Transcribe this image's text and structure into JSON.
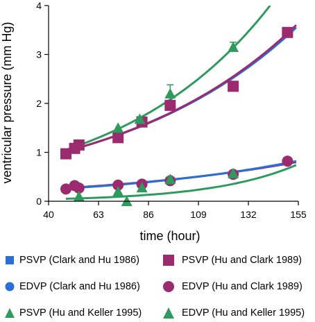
{
  "chart_data": {
    "type": "scatter",
    "xlabel": "time (hour)",
    "ylabel": "ventricular pressure (mm Hg)",
    "xlim": [
      40,
      155
    ],
    "ylim": [
      0,
      4
    ],
    "xticks": [
      "40",
      "63",
      "86",
      "109",
      "132",
      "155"
    ],
    "yticks": [
      "0",
      "1",
      "2",
      "3",
      "4"
    ],
    "colors": {
      "blue": "#2a6fd6",
      "purple": "#9b2a6e",
      "green": "#2f9a5e"
    },
    "series": [
      {
        "name": "PSVP (Clark and Hu 1986)",
        "marker": "square",
        "color": "#2a6fd6",
        "points": [],
        "fit_x": [
          48,
          154
        ],
        "fit_y": [
          1.02,
          3.55
        ]
      },
      {
        "name": "PSVP (Hu and Clark 1989)",
        "marker": "square",
        "color": "#9b2a6e",
        "points": [
          [
            48,
            0.97
          ],
          [
            52,
            1.08
          ],
          [
            54,
            1.15
          ],
          [
            72,
            1.3
          ],
          [
            83,
            1.62
          ],
          [
            96,
            1.96
          ],
          [
            125,
            2.35
          ],
          [
            150,
            3.45
          ]
        ],
        "fit_x": [
          48,
          154
        ],
        "fit_y": [
          1.02,
          3.6
        ]
      },
      {
        "name": "EDVP (Clark and Hu 1986)",
        "marker": "circle",
        "color": "#2a6fd6",
        "points": [],
        "fit_x": [
          48,
          154
        ],
        "fit_y": [
          0.26,
          0.82
        ]
      },
      {
        "name": "EDVP (Hu and Clark 1989)",
        "marker": "circle",
        "color": "#9b2a6e",
        "points": [
          [
            48,
            0.25
          ],
          [
            52,
            0.32
          ],
          [
            54,
            0.27
          ],
          [
            72,
            0.33
          ],
          [
            83,
            0.35
          ],
          [
            96,
            0.42
          ],
          [
            125,
            0.55
          ],
          [
            150,
            0.82
          ]
        ],
        "fit_x": [
          48,
          154
        ],
        "fit_y": [
          0.27,
          0.8
        ]
      },
      {
        "name": "PSVP (Hu and Keller 1995)",
        "marker": "triangle",
        "color": "#2f9a5e",
        "points": [
          [
            72,
            1.5
          ],
          [
            82,
            1.68
          ],
          [
            96,
            2.2
          ],
          [
            125,
            3.15
          ]
        ],
        "error": [
          0,
          0.05,
          0.18,
          0.1
        ],
        "fit_x": [
          48,
          142
        ],
        "fit_y": [
          1.05,
          4.0
        ]
      },
      {
        "name": "EDVP (Hu and Keller 1995)",
        "marker": "triangle",
        "color": "#2f9a5e",
        "points": [
          [
            54,
            0.1
          ],
          [
            72,
            0.2
          ],
          [
            76,
            0.0
          ],
          [
            83,
            0.28
          ],
          [
            96,
            0.45
          ],
          [
            125,
            0.57
          ]
        ],
        "error": [
          0,
          0,
          0,
          0,
          0.05,
          0
        ],
        "fit_x": [
          48,
          154
        ],
        "fit_y": [
          0.05,
          0.74
        ]
      }
    ]
  },
  "legend": [
    {
      "label": "PSVP (Clark and Hu 1986)",
      "marker": "square",
      "color": "#2a6fd6"
    },
    {
      "label": "PSVP (Hu and Clark 1989)",
      "marker": "square",
      "color": "#9b2a6e"
    },
    {
      "label": "EDVP (Clark and Hu 1986)",
      "marker": "circle",
      "color": "#2a6fd6"
    },
    {
      "label": "EDVP (Hu and Clark 1989)",
      "marker": "circle",
      "color": "#9b2a6e"
    },
    {
      "label": "PSVP (Hu and Keller 1995)",
      "marker": "triangle",
      "color": "#2f9a5e"
    },
    {
      "label": "EDVP (Hu and Keller 1995)",
      "marker": "triangle",
      "color": "#2f9a5e"
    }
  ]
}
